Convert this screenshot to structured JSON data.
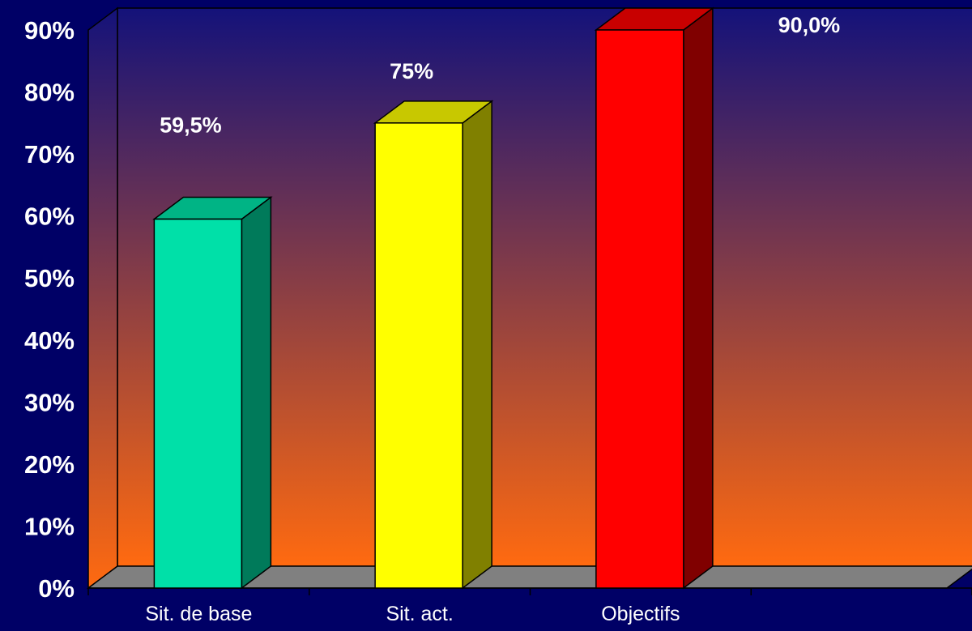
{
  "chart_data": {
    "type": "bar",
    "categories": [
      "Sit. de base",
      "Sit. act.",
      "Objectifs"
    ],
    "values": [
      59.5,
      75,
      90
    ],
    "data_labels": [
      "59,5%",
      "75%",
      "90,0%"
    ],
    "y_tick_labels": [
      "0%",
      "10%",
      "20%",
      "30%",
      "40%",
      "50%",
      "60%",
      "70%",
      "80%",
      "90%"
    ],
    "ylim": [
      0,
      90
    ],
    "bar_colors": [
      {
        "front": "#00E0A8",
        "side": "#007A5A",
        "top": "#00B485"
      },
      {
        "front": "#FFFF00",
        "side": "#808000",
        "top": "#C8C800"
      },
      {
        "front": "#FF0000",
        "side": "#800000",
        "top": "#C80000"
      }
    ],
    "background_gradient": [
      "#14127A",
      "#FF6A10"
    ],
    "floor_color": "#808080",
    "grid": false,
    "legend": "none"
  }
}
